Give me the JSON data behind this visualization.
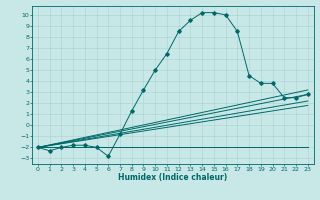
{
  "title": "",
  "xlabel": "Humidex (Indice chaleur)",
  "ylabel": "",
  "bg_color": "#c8e8e8",
  "grid_color": "#b0d4d4",
  "line_color": "#006868",
  "xlim": [
    -0.5,
    23.5
  ],
  "ylim": [
    -3.5,
    10.8
  ],
  "xticks": [
    0,
    1,
    2,
    3,
    4,
    5,
    6,
    7,
    8,
    9,
    10,
    11,
    12,
    13,
    14,
    15,
    16,
    17,
    18,
    19,
    20,
    21,
    22,
    23
  ],
  "yticks": [
    -3,
    -2,
    -1,
    0,
    1,
    2,
    3,
    4,
    5,
    6,
    7,
    8,
    9,
    10
  ],
  "main_curve_x": [
    0,
    1,
    2,
    3,
    4,
    5,
    6,
    7,
    8,
    9,
    10,
    11,
    12,
    13,
    14,
    15,
    16,
    17,
    18,
    19,
    20,
    21,
    22,
    23
  ],
  "main_curve_y": [
    -2.0,
    -2.3,
    -2.0,
    -1.8,
    -1.8,
    -2.0,
    -2.8,
    -0.8,
    1.3,
    3.2,
    5.0,
    6.5,
    8.5,
    9.5,
    10.2,
    10.2,
    10.0,
    8.5,
    4.5,
    3.8,
    3.8,
    2.5,
    2.5,
    2.8
  ],
  "flat_lines": [
    [
      [
        -2.0,
        -2.0
      ],
      [
        23,
        1.8
      ]
    ],
    [
      [
        -2.0,
        -2.0
      ],
      [
        23,
        2.2
      ]
    ],
    [
      [
        -2.0,
        -2.0
      ],
      [
        23,
        2.8
      ]
    ],
    [
      [
        -2.0,
        -2.0
      ],
      [
        23,
        3.2
      ]
    ]
  ]
}
